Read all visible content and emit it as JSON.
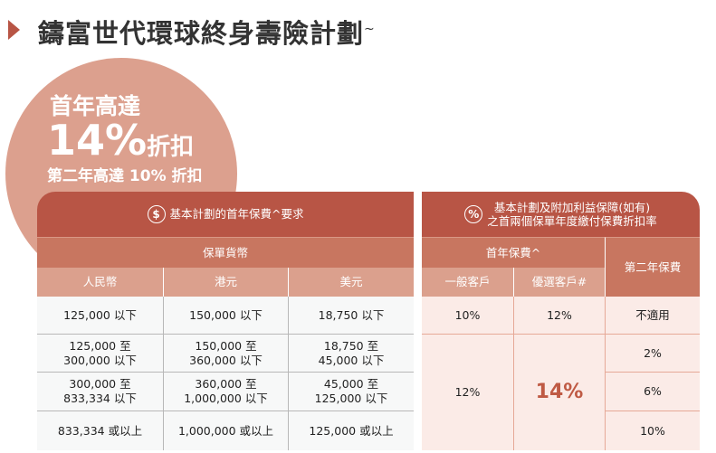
{
  "title": {
    "text": "鑄富世代環球終身壽險計劃",
    "mark": "~"
  },
  "promo": {
    "line1": "首年高達",
    "big": "14%",
    "big_suffix": "折扣",
    "line3": "第二年高達 10% 折扣"
  },
  "left_table": {
    "header": "基本計劃的首年保費^要求",
    "icon": "dollar-icon",
    "icon_glyph": "$",
    "subheader": "保單貨幣",
    "columns": [
      "人民幣",
      "港元",
      "美元"
    ],
    "rows": [
      [
        "125,000 以下",
        "150,000 以下",
        "18,750 以下"
      ],
      [
        "125,000 至\n300,000 以下",
        "150,000 至\n360,000 以下",
        "18,750 至\n45,000 以下"
      ],
      [
        "300,000 至\n833,334 以下",
        "360,000 至\n1,000,000 以下",
        "45,000 至\n125,000 以下"
      ],
      [
        "833,334 或以上",
        "1,000,000 或以上",
        "125,000 或以上"
      ]
    ]
  },
  "right_table": {
    "header": "基本計劃及附加利益保障(如有)\n之首兩個保單年度繳付保費折扣率",
    "icon": "percent-icon",
    "icon_glyph": "%",
    "first_year": "首年保費^",
    "second_year": "第二年保費",
    "columns": [
      "一般客戶",
      "優選客戶#"
    ],
    "row1": [
      "10%",
      "12%",
      "不適用"
    ],
    "general_rest": "12%",
    "preferred_rest": "14%",
    "second_year_rest": [
      "2%",
      "6%",
      "10%"
    ]
  },
  "colors": {
    "dark": "#b85545",
    "mid": "#c87660",
    "light": "#dba08d",
    "circle": "#dca08e",
    "highlight": "#bf5a44"
  }
}
